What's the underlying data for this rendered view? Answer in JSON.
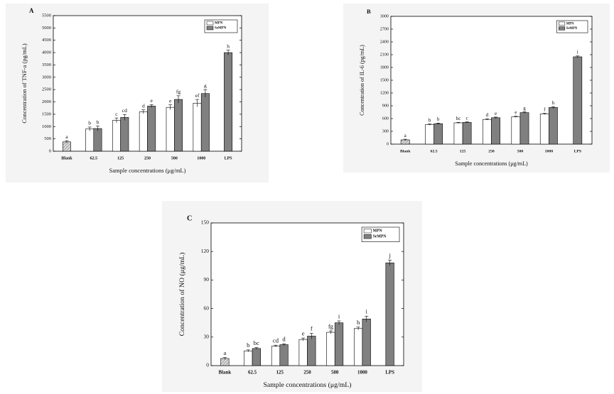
{
  "chart_data": [
    {
      "type": "bar",
      "title": "A",
      "y_label": "Concentration of TNF-a (pg/mL)",
      "x_label": "Sample concentrations (μg/mL)",
      "categories": [
        "Blank",
        "62.5",
        "125",
        "250",
        "500",
        "1000",
        "LPS"
      ],
      "ylim": [
        0,
        5500
      ],
      "yticks": [
        0,
        500,
        1000,
        1500,
        2000,
        2500,
        3000,
        3500,
        4000,
        4500,
        5000,
        5500
      ],
      "legend": "upper right",
      "series": [
        {
          "color": "#d9d9d9",
          "hatch": true,
          "values": [
            380,
            null,
            null,
            null,
            null,
            null,
            null
          ],
          "errors": [
            50,
            null,
            null,
            null,
            null,
            null,
            null
          ],
          "letters": [
            "a",
            null,
            null,
            null,
            null,
            null,
            null
          ]
        },
        {
          "name": "MPN",
          "color": "#ffffff",
          "values": [
            null,
            900,
            1250,
            1600,
            1780,
            1950,
            null
          ],
          "errors": [
            null,
            80,
            100,
            80,
            100,
            150,
            null
          ],
          "letters": [
            null,
            "b",
            "c",
            "d",
            "e",
            "ef",
            null
          ]
        },
        {
          "name": "SeMPN",
          "color": "#808080",
          "values": [
            null,
            920,
            1370,
            1830,
            2100,
            2340,
            4000
          ],
          "errors": [
            null,
            100,
            120,
            60,
            150,
            150,
            100
          ],
          "letters": [
            null,
            "b",
            "cd",
            "e",
            "fg",
            "g",
            "h"
          ]
        }
      ]
    },
    {
      "type": "bar",
      "title": "B",
      "y_label": "Concentration of IL-6 (pg/mL)",
      "x_label": "Sample concentrations (μg/mL)",
      "categories": [
        "Blank",
        "62.5",
        "125",
        "250",
        "500",
        "1000",
        "LPS"
      ],
      "ylim": [
        0,
        3000
      ],
      "yticks": [
        0,
        300,
        600,
        900,
        1200,
        1500,
        1800,
        2100,
        2400,
        2700,
        3000
      ],
      "legend": "upper right",
      "series": [
        {
          "color": "#d9d9d9",
          "hatch": true,
          "values": [
            100,
            null,
            null,
            null,
            null,
            null,
            null
          ],
          "errors": [
            15,
            null,
            null,
            null,
            null,
            null,
            null
          ],
          "letters": [
            "a",
            null,
            null,
            null,
            null,
            null,
            null
          ]
        },
        {
          "name": "MPN",
          "color": "#ffffff",
          "values": [
            null,
            460,
            500,
            580,
            640,
            710,
            null
          ],
          "errors": [
            null,
            15,
            12,
            15,
            15,
            15,
            null
          ],
          "letters": [
            null,
            "b",
            "bc",
            "d",
            "e",
            "f",
            null
          ]
        },
        {
          "name": "SeMPN",
          "color": "#808080",
          "values": [
            null,
            480,
            510,
            620,
            740,
            860,
            2050
          ],
          "errors": [
            null,
            15,
            12,
            15,
            20,
            20,
            20
          ],
          "letters": [
            null,
            "b",
            "c",
            "e",
            "g",
            "h",
            "i"
          ]
        }
      ]
    },
    {
      "type": "bar",
      "title": "C",
      "y_label": "Concentration of NO (μg/mL)",
      "x_label": "Sample concentrations (μg/mL)",
      "categories": [
        "Blank",
        "62.5",
        "125",
        "250",
        "500",
        "1000",
        "LPS"
      ],
      "ylim": [
        0,
        150
      ],
      "yticks": [
        0,
        30,
        60,
        90,
        120,
        150
      ],
      "legend": "upper right",
      "series": [
        {
          "color": "#d9d9d9",
          "hatch": true,
          "values": [
            7.5,
            null,
            null,
            null,
            null,
            null,
            null
          ],
          "errors": [
            1,
            null,
            null,
            null,
            null,
            null,
            null
          ],
          "letters": [
            "a",
            null,
            null,
            null,
            null,
            null,
            null
          ]
        },
        {
          "name": "MPN",
          "color": "#ffffff",
          "values": [
            null,
            15.5,
            20.5,
            27.5,
            35,
            39,
            null
          ],
          "errors": [
            null,
            1,
            1,
            1.5,
            1.5,
            1.5,
            null
          ],
          "letters": [
            null,
            "b",
            "cd",
            "e",
            "fg",
            "h",
            null
          ]
        },
        {
          "name": "SeMPN",
          "color": "#808080",
          "values": [
            null,
            18,
            22,
            31,
            45,
            49,
            108
          ],
          "errors": [
            null,
            1,
            1,
            3,
            2,
            3,
            3
          ],
          "letters": [
            null,
            "bc",
            "d",
            "f",
            "i",
            "i",
            "j"
          ]
        }
      ]
    }
  ]
}
